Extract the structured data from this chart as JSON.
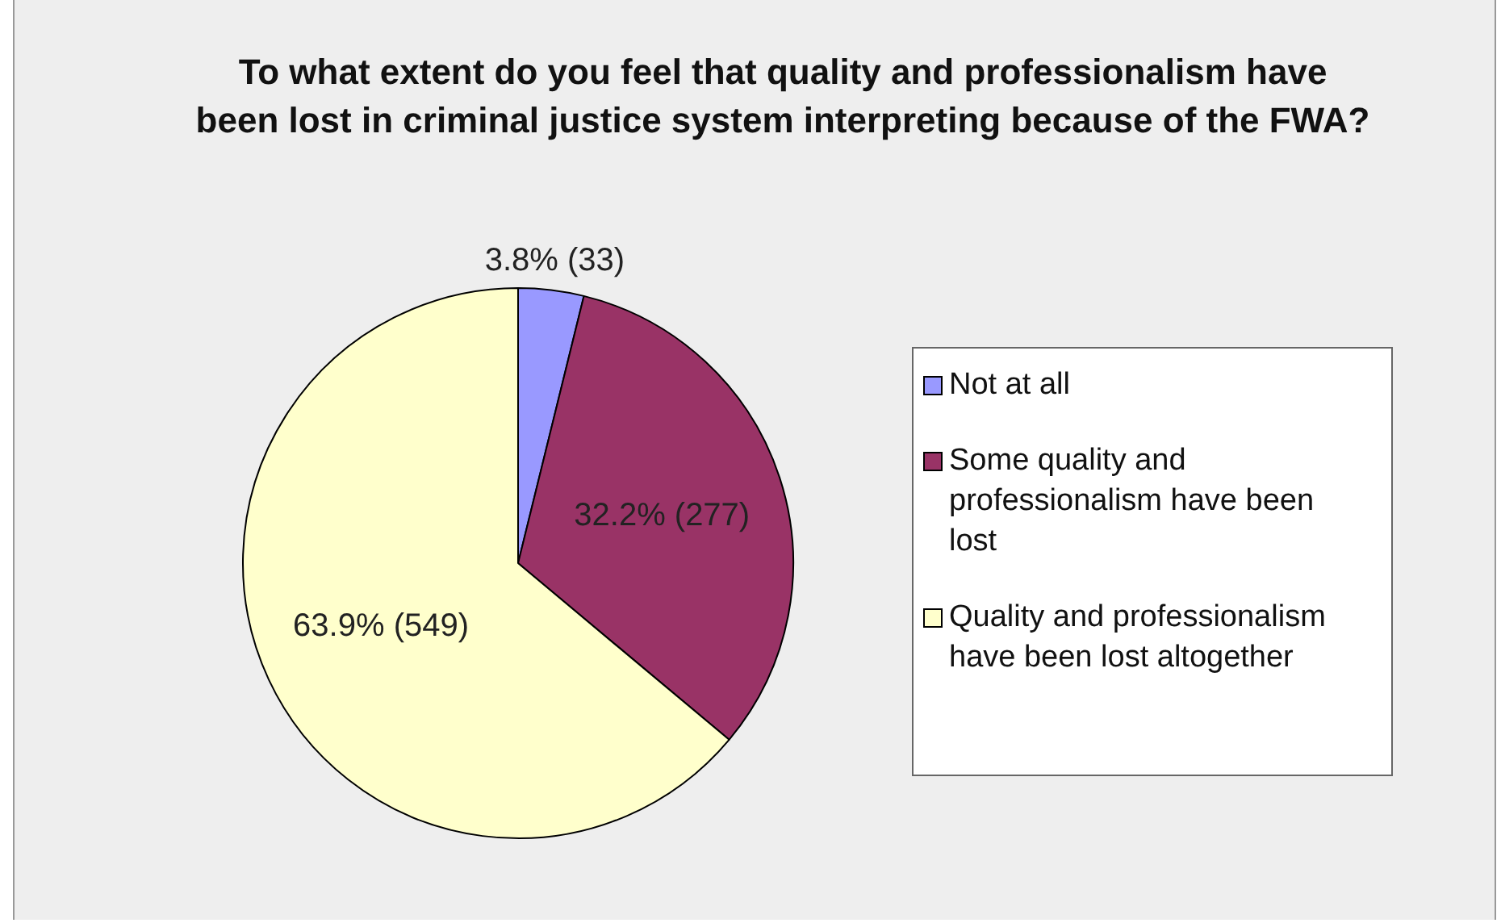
{
  "chart_data": {
    "type": "pie",
    "title": "To what extent do you feel that quality and professionalism have been lost in criminal justice system interpreting because of the FWA?",
    "categories": [
      "Not at all",
      "Some quality and professionalism have been lost",
      "Quality and professionalism have been lost altogether"
    ],
    "values": [
      33,
      277,
      549
    ],
    "colors": [
      "#9999ff",
      "#993366",
      "#ffffcc"
    ],
    "value_labels": [
      "3.8% (33)",
      "32.2% (277)",
      "63.9% (549)"
    ],
    "legend": "right"
  }
}
